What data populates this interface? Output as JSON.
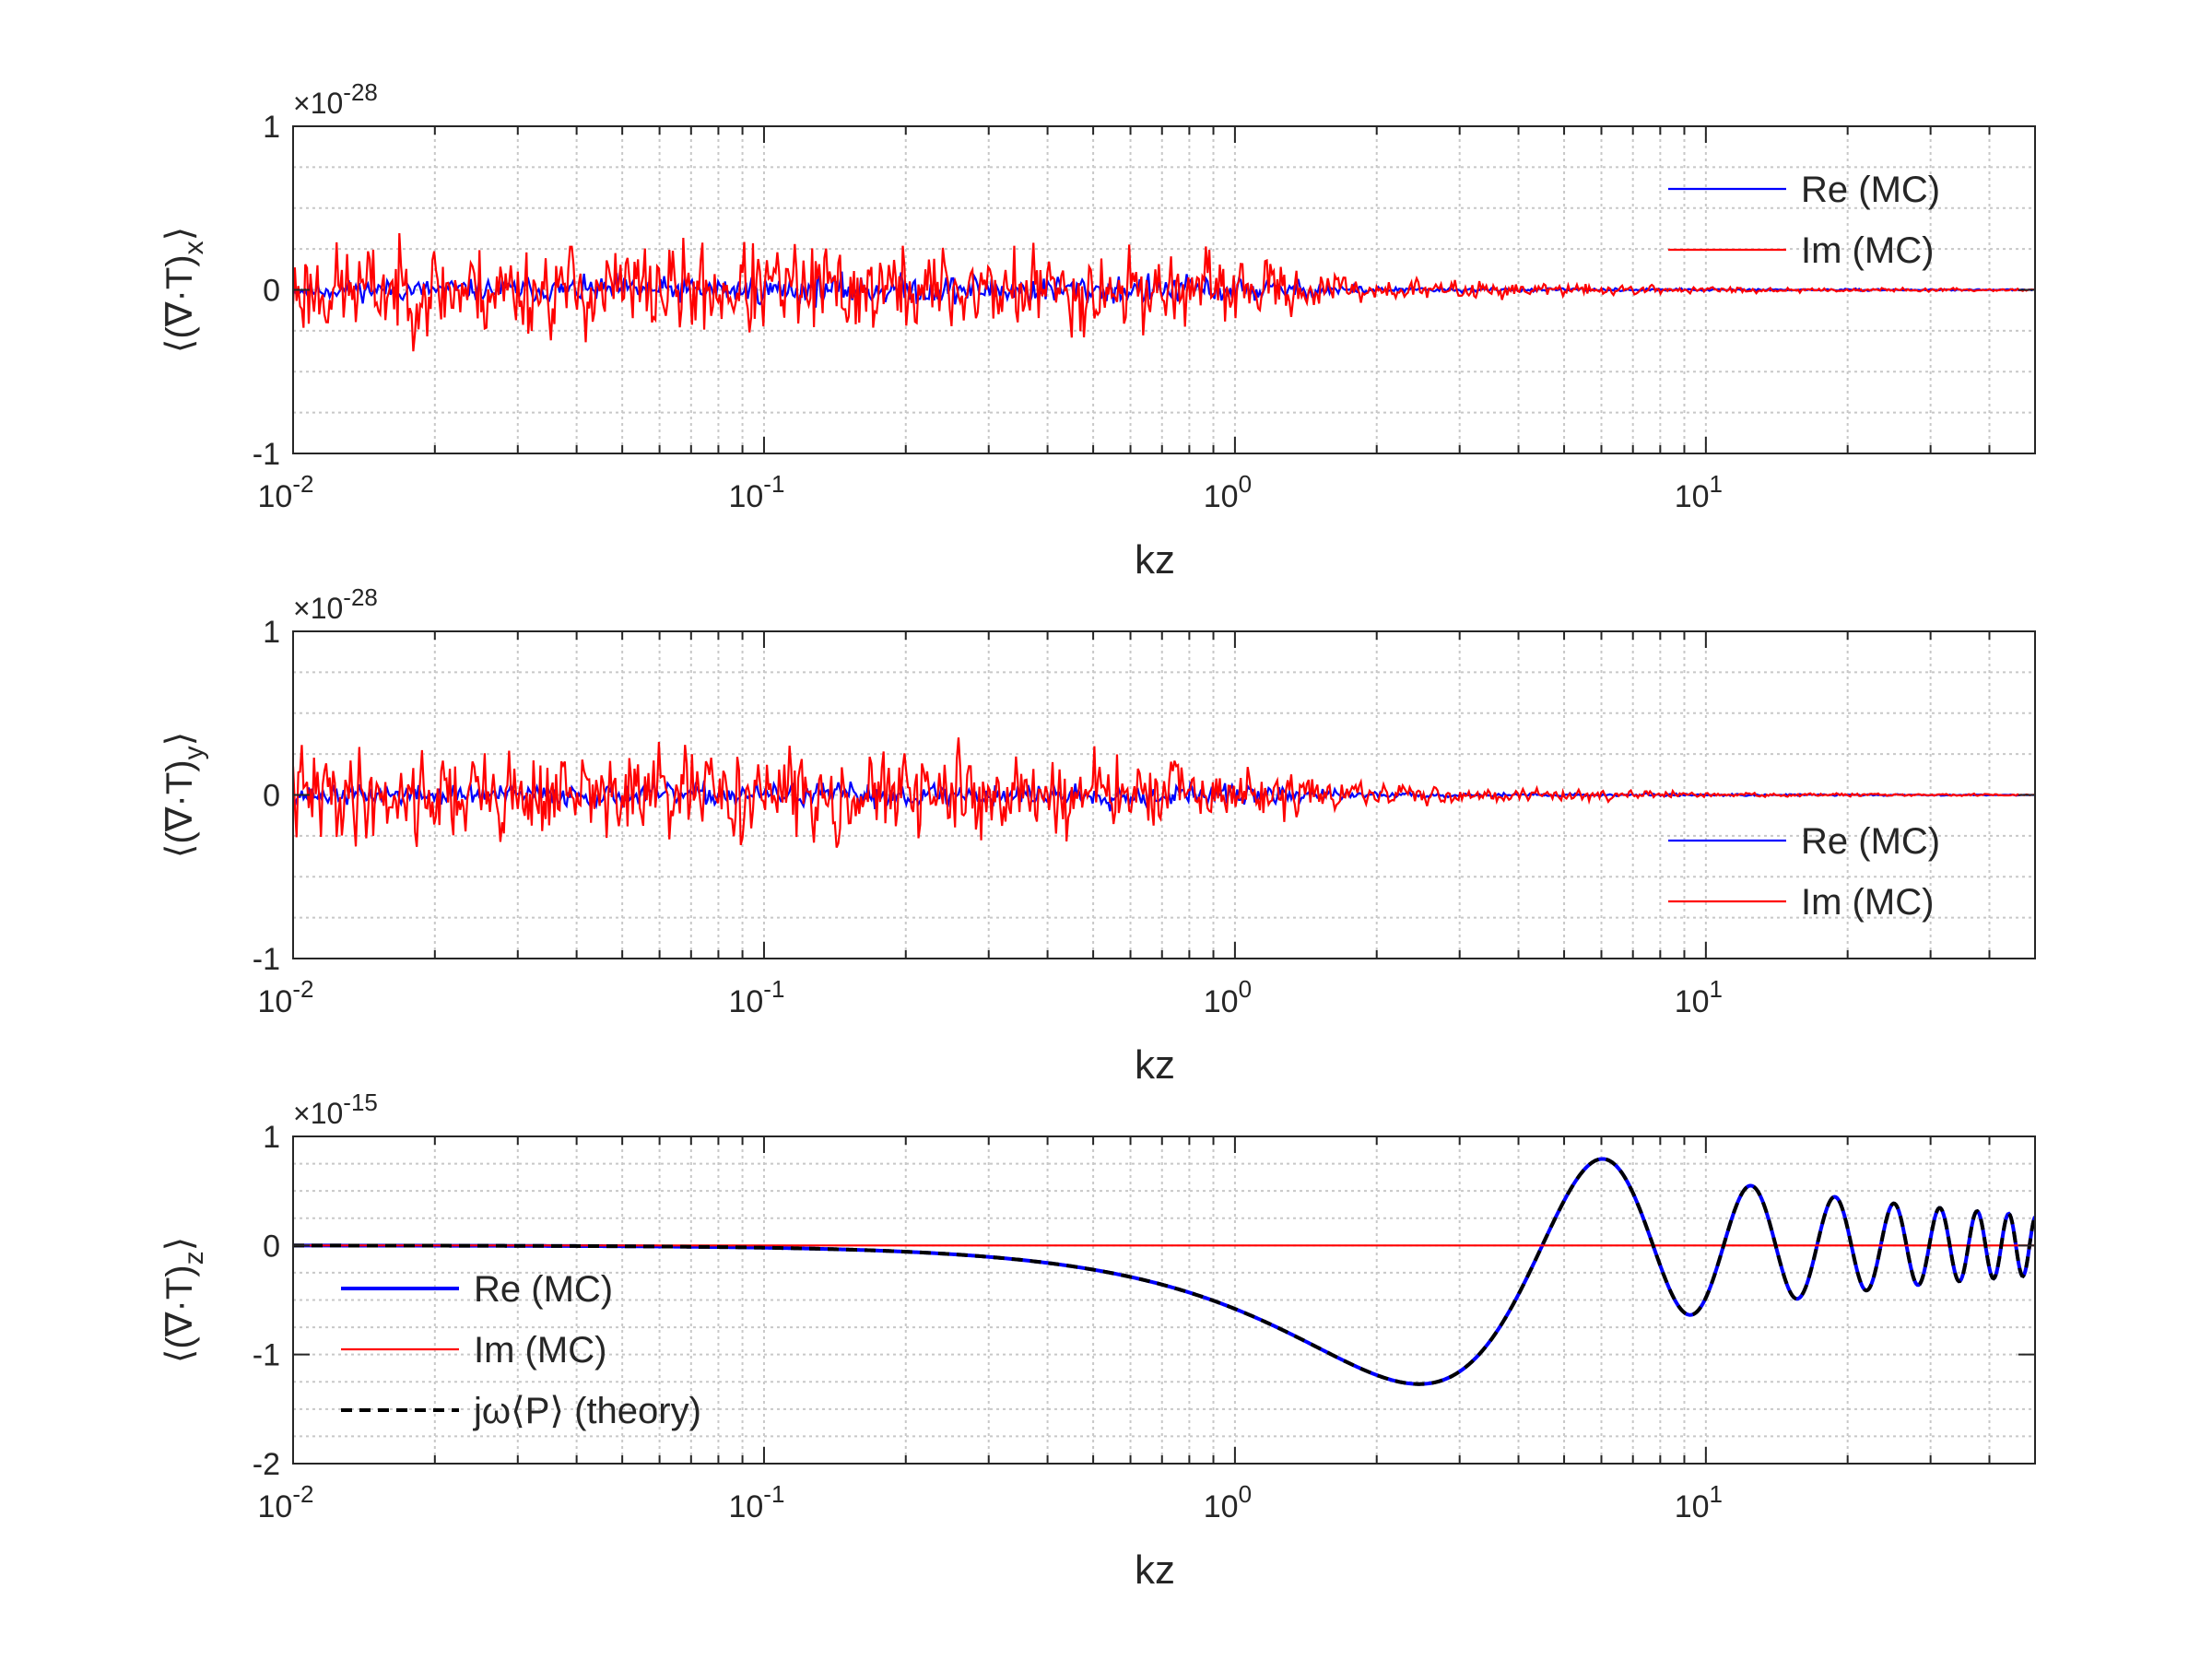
{
  "figure": {
    "background": "#ffffff"
  },
  "chart_data": [
    {
      "type": "line",
      "id": "panel-x",
      "xscale": "log",
      "xlim": [
        0.01,
        50
      ],
      "ylim": [
        -1,
        1
      ],
      "y_exponent_text": "×10",
      "y_exponent_power": "-28",
      "xlabel": "kz",
      "ylabel": {
        "prefix": "⟨(∇·T)",
        "sub": "x",
        "suffix": "⟩"
      },
      "grid": true,
      "legend_position": "top-right",
      "x_ticks": [
        {
          "base": "10",
          "exp": "-2",
          "value": 0.01
        },
        {
          "base": "10",
          "exp": "-1",
          "value": 0.1
        },
        {
          "base": "10",
          "exp": "0",
          "value": 1
        },
        {
          "base": "10",
          "exp": "1",
          "value": 10
        }
      ],
      "y_ticks": [
        {
          "label": "-1",
          "value": -1
        },
        {
          "label": "0",
          "value": 0
        },
        {
          "label": "1",
          "value": 1
        }
      ],
      "series": [
        {
          "name": "Re (MC)",
          "color": "#0000ff",
          "kind": "noise",
          "amplitude_envelope": [
            [
              0.01,
              0.06
            ],
            [
              0.3,
              0.1
            ],
            [
              1.0,
              0.09
            ],
            [
              2.0,
              0.02
            ],
            [
              5.0,
              0.01
            ],
            [
              50,
              0.004
            ]
          ],
          "seed": 11
        },
        {
          "name": "Im (MC)",
          "color": "#ff0000",
          "kind": "noise",
          "amplitude_envelope": [
            [
              0.01,
              0.3
            ],
            [
              0.1,
              0.3
            ],
            [
              0.5,
              0.28
            ],
            [
              1.0,
              0.2
            ],
            [
              2.0,
              0.07
            ],
            [
              5.0,
              0.04
            ],
            [
              10,
              0.02
            ],
            [
              50,
              0.006
            ]
          ],
          "seed": 23
        }
      ]
    },
    {
      "type": "line",
      "id": "panel-y",
      "xscale": "log",
      "xlim": [
        0.01,
        50
      ],
      "ylim": [
        -1,
        1
      ],
      "y_exponent_text": "×10",
      "y_exponent_power": "-28",
      "xlabel": "kz",
      "ylabel": {
        "prefix": "⟨(∇·T)",
        "sub": "y",
        "suffix": "⟩"
      },
      "grid": true,
      "legend_position": "bottom-right",
      "x_ticks": [
        {
          "base": "10",
          "exp": "-2",
          "value": 0.01
        },
        {
          "base": "10",
          "exp": "-1",
          "value": 0.1
        },
        {
          "base": "10",
          "exp": "0",
          "value": 1
        },
        {
          "base": "10",
          "exp": "1",
          "value": 10
        }
      ],
      "y_ticks": [
        {
          "label": "-1",
          "value": -1
        },
        {
          "label": "0",
          "value": 0
        },
        {
          "label": "1",
          "value": 1
        }
      ],
      "series": [
        {
          "name": "Re (MC)",
          "color": "#0000ff",
          "kind": "noise",
          "amplitude_envelope": [
            [
              0.01,
              0.06
            ],
            [
              0.3,
              0.08
            ],
            [
              1.0,
              0.07
            ],
            [
              2.0,
              0.02
            ],
            [
              5.0,
              0.01
            ],
            [
              50,
              0.003
            ]
          ],
          "seed": 37
        },
        {
          "name": "Im (MC)",
          "color": "#ff0000",
          "kind": "noise",
          "amplitude_envelope": [
            [
              0.01,
              0.3
            ],
            [
              0.1,
              0.28
            ],
            [
              0.5,
              0.26
            ],
            [
              1.0,
              0.18
            ],
            [
              2.0,
              0.06
            ],
            [
              5.0,
              0.04
            ],
            [
              10,
              0.015
            ],
            [
              50,
              0.005
            ]
          ],
          "seed": 41
        }
      ]
    },
    {
      "type": "line",
      "id": "panel-z",
      "xscale": "log",
      "xlim": [
        0.01,
        50
      ],
      "ylim": [
        -2,
        1
      ],
      "y_exponent_text": "×10",
      "y_exponent_power": "-15",
      "xlabel": "kz",
      "ylabel": {
        "prefix": "⟨(∇·T)",
        "sub": "z",
        "suffix": "⟩"
      },
      "grid": true,
      "legend_position": "bottom-left",
      "x_ticks": [
        {
          "base": "10",
          "exp": "-2",
          "value": 0.01
        },
        {
          "base": "10",
          "exp": "-1",
          "value": 0.1
        },
        {
          "base": "10",
          "exp": "0",
          "value": 1
        },
        {
          "base": "10",
          "exp": "1",
          "value": 10
        }
      ],
      "y_ticks": [
        {
          "label": "-2",
          "value": -2
        },
        {
          "label": "-1",
          "value": -1
        },
        {
          "label": "0",
          "value": 0
        },
        {
          "label": "1",
          "value": 1
        }
      ],
      "series": [
        {
          "name": "Re (MC)",
          "color": "#0000ff",
          "kind": "theory",
          "scale": 1.6
        },
        {
          "name": "Im (MC)",
          "color": "#ff0000",
          "kind": "zero"
        },
        {
          "name": "jω⟨P⟩ (theory)",
          "color": "#000000",
          "kind": "theory",
          "scale": 1.6,
          "dashed": true
        }
      ]
    }
  ]
}
